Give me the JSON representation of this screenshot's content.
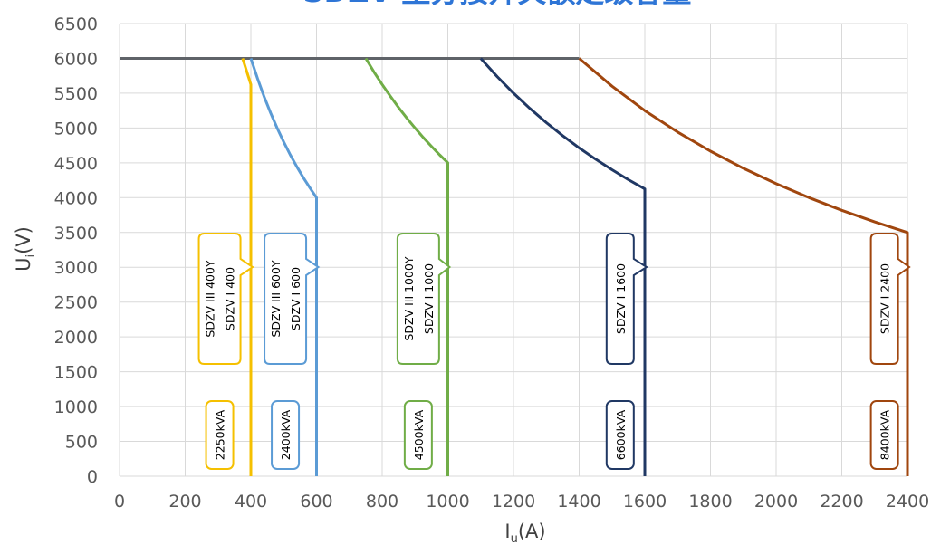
{
  "chart_data": {
    "type": "line",
    "title": "SDZV 型分接开关额定级容量",
    "xlabel": "I",
    "xlabel_sub": "u",
    "xlabel_unit": "(A)",
    "ylabel": "U",
    "ylabel_sub": "i",
    "ylabel_unit": "(V)",
    "xlim": [
      0,
      2400
    ],
    "ylim": [
      0,
      6500
    ],
    "x_ticks": [
      0,
      200,
      400,
      600,
      800,
      1000,
      1200,
      1400,
      1600,
      1800,
      2000,
      2200,
      2400
    ],
    "y_ticks": [
      0,
      500,
      1000,
      1500,
      2000,
      2500,
      3000,
      3500,
      4000,
      4500,
      5000,
      5500,
      6000,
      6500
    ],
    "grid": true,
    "max_voltage_line": {
      "y": 6000,
      "x_range": [
        0,
        1400
      ],
      "color": "#5f6368"
    },
    "series": [
      {
        "color": "#f5c000",
        "points": [
          [
            400,
            0
          ],
          [
            400,
            5625
          ],
          [
            375,
            6000
          ]
        ],
        "model_labels": [
          "SDZV III 400Y",
          "SDZV I 400"
        ],
        "capacity_label": "2250kVA",
        "label_x": 305
      },
      {
        "color": "#5b9bd5",
        "points": [
          [
            600,
            0
          ],
          [
            600,
            4000
          ],
          [
            580,
            4138
          ],
          [
            560,
            4286
          ],
          [
            540,
            4444
          ],
          [
            520,
            4615
          ],
          [
            500,
            4800
          ],
          [
            480,
            5000
          ],
          [
            460,
            5217
          ],
          [
            440,
            5455
          ],
          [
            420,
            5714
          ],
          [
            400,
            6000
          ]
        ],
        "model_labels": [
          "SDZV III 600Y",
          "SDZV I 600"
        ],
        "capacity_label": "2400kVA",
        "label_x": 505
      },
      {
        "color": "#70ad47",
        "points": [
          [
            1000,
            0
          ],
          [
            1000,
            4500
          ],
          [
            975,
            4615
          ],
          [
            950,
            4737
          ],
          [
            925,
            4865
          ],
          [
            900,
            5000
          ],
          [
            875,
            5143
          ],
          [
            850,
            5294
          ],
          [
            825,
            5455
          ],
          [
            800,
            5625
          ],
          [
            775,
            5806
          ],
          [
            750,
            6000
          ]
        ],
        "model_labels": [
          "SDZV III 1000Y",
          "SDZV I 1000"
        ],
        "capacity_label": "4500kVA",
        "label_x": 910
      },
      {
        "color": "#203864",
        "points": [
          [
            1600,
            0
          ],
          [
            1600,
            4125
          ],
          [
            1550,
            4258
          ],
          [
            1500,
            4400
          ],
          [
            1450,
            4552
          ],
          [
            1400,
            4714
          ],
          [
            1350,
            4889
          ],
          [
            1300,
            5077
          ],
          [
            1250,
            5280
          ],
          [
            1200,
            5500
          ],
          [
            1150,
            5739
          ],
          [
            1100,
            6000
          ]
        ],
        "model_labels": [
          "SDZV I 1600"
        ],
        "capacity_label": "6600kVA",
        "label_x": 1525
      },
      {
        "color": "#a0460e",
        "points": [
          [
            2400,
            0
          ],
          [
            2400,
            3500
          ],
          [
            2300,
            3652
          ],
          [
            2200,
            3818
          ],
          [
            2100,
            4000
          ],
          [
            2000,
            4200
          ],
          [
            1900,
            4421
          ],
          [
            1800,
            4667
          ],
          [
            1700,
            4941
          ],
          [
            1600,
            5250
          ],
          [
            1500,
            5600
          ],
          [
            1400,
            6000
          ]
        ],
        "model_labels": [
          "SDZV I 2400"
        ],
        "capacity_label": "8400kVA",
        "label_x": 2330
      }
    ]
  }
}
